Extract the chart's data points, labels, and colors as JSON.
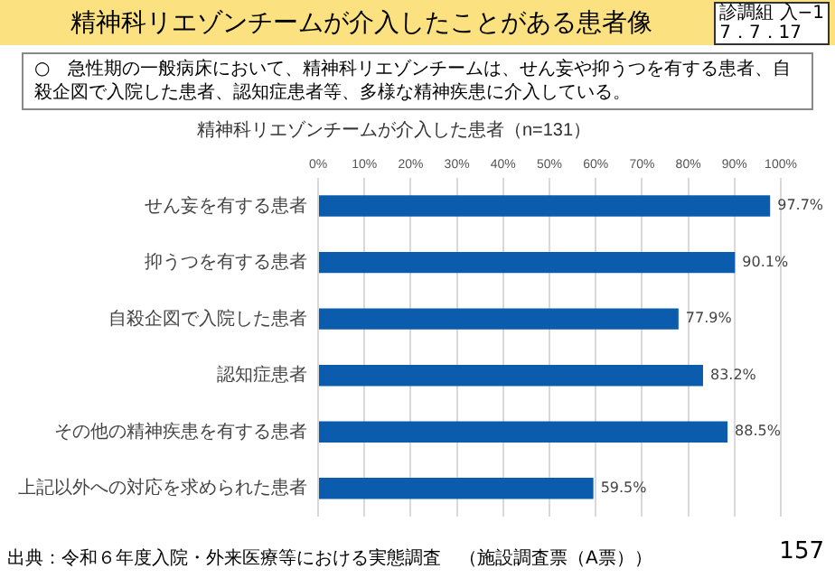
{
  "chart_data": {
    "type": "bar",
    "orientation": "horizontal",
    "title": "精神科リエゾンチームが介入したことがある患者像",
    "subtitle": "精神科リエゾンチームが介入した患者（n=131）",
    "categories": [
      "せん妄を有する患者",
      "抑うつを有する患者",
      "自殺企図で入院した患者",
      "認知症患者",
      "その他の精神疾患を有する患者",
      "上記以外への対応を求められた患者"
    ],
    "values": [
      97.7,
      90.1,
      77.9,
      83.2,
      88.5,
      59.5
    ],
    "value_labels": [
      "97.7%",
      "90.1%",
      "77.9%",
      "83.2%",
      "88.5%",
      "59.5%"
    ],
    "color": "#0b5cad",
    "xlim": [
      0,
      100
    ],
    "xticks": [
      {
        "value": 0,
        "label": "0%"
      },
      {
        "value": 10,
        "label": "10%"
      },
      {
        "value": 20,
        "label": "20%"
      },
      {
        "value": 30,
        "label": "30%"
      },
      {
        "value": 40,
        "label": "40%"
      },
      {
        "value": 50,
        "label": "50%"
      },
      {
        "value": 60,
        "label": "60%"
      },
      {
        "value": 70,
        "label": "70%"
      },
      {
        "value": 80,
        "label": "80%"
      },
      {
        "value": 90,
        "label": "90%"
      },
      {
        "value": 100,
        "label": "100%"
      }
    ],
    "grid": "x",
    "legend": false,
    "annotations": [
      "診調組 入−1",
      "7．7．17",
      "○　急性期の一般病床において、精神科リエゾンチームは、せん妄や抑うつを有する患者、自殺企図で入院した患者、認知症患者等、多様な精神疾患に介入している。",
      "出典：令和６年度入院・外来医療等における実態調査　（施設調査票（A票））",
      "157"
    ]
  }
}
